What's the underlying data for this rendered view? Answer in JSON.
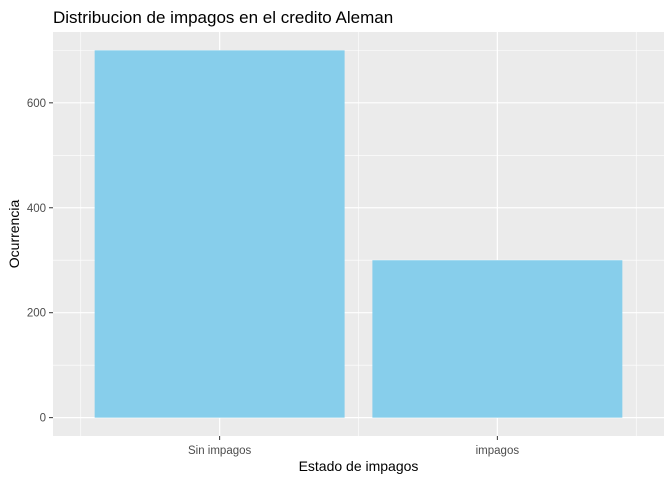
{
  "chart_data": {
    "type": "bar",
    "title": "Distribucion de impagos en el credito Aleman",
    "xlabel": "Estado de impagos",
    "ylabel": "Ocurrencia",
    "categories": [
      "Sin impagos",
      "impagos"
    ],
    "values": [
      700,
      300
    ],
    "ylim": [
      -35,
      735
    ],
    "yticks": [
      0,
      200,
      400,
      600
    ],
    "grid": true,
    "colors": {
      "bar": "#87CEEB",
      "panel": "#EBEBEB",
      "grid_major": "#FFFFFF",
      "tick_text": "#4D4D4D"
    }
  }
}
